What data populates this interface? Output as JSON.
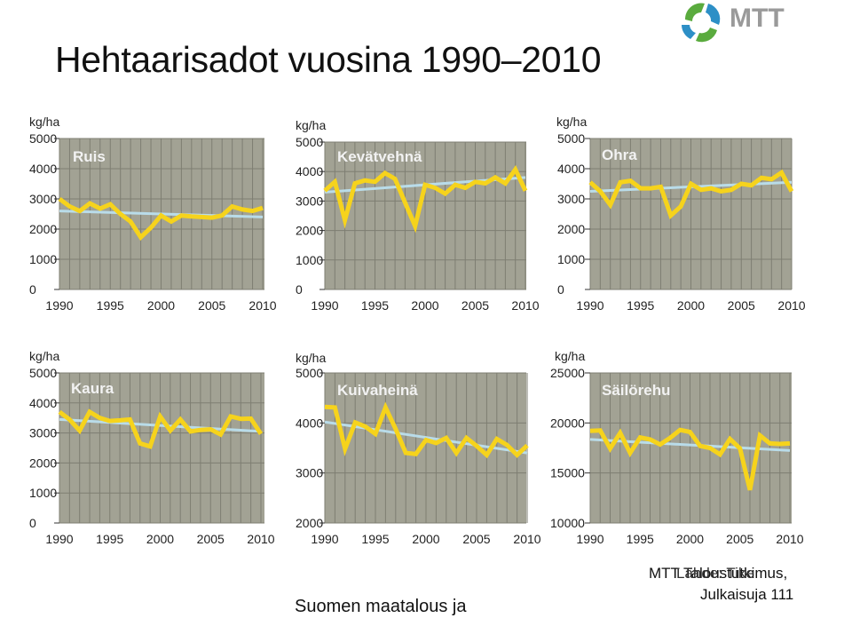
{
  "page": {
    "title": "Hehtaarisadot vuosina 1990–2010",
    "logo_text": "MTT",
    "footer_left": "Suomen maatalous ja",
    "footer_right_1": "MTT Taloustutkimus,",
    "footer_right_2": "Julkaisuja 111",
    "footer_overlap": "Lähde: Tike"
  },
  "colors": {
    "plot_bg": "#a2a294",
    "grid": "#7e7e72",
    "series": "#f6d31c",
    "trend": "#b9dce9",
    "panel_label": "#f2f2f2",
    "logo_green": "#5aab3e",
    "logo_blue": "#2d8fc6",
    "logo_text": "#9a9a9a"
  },
  "chart_data": [
    {
      "type": "line",
      "title": "Ruis",
      "unit": "kg/ha",
      "x": [
        1990,
        1991,
        1992,
        1993,
        1994,
        1995,
        1996,
        1997,
        1998,
        1999,
        2000,
        2001,
        2002,
        2003,
        2004,
        2005,
        2006,
        2007,
        2008,
        2009,
        2010
      ],
      "series": [
        {
          "values": [
            3000,
            2750,
            2600,
            2850,
            2680,
            2820,
            2500,
            2250,
            1730,
            2050,
            2450,
            2250,
            2450,
            2420,
            2400,
            2380,
            2450,
            2750,
            2650,
            2600,
            2700
          ]
        }
      ],
      "trend": [
        2600,
        2400
      ],
      "xticks": [
        "1990",
        "1995",
        "2000",
        "2005",
        "2010"
      ],
      "yticks": [
        "0",
        "1000",
        "2000",
        "3000",
        "4000",
        "5000"
      ],
      "ylim": [
        0,
        5000
      ],
      "grid": true
    },
    {
      "type": "line",
      "title": "Kevätvehnä",
      "unit": "kg/ha",
      "x": [
        1990,
        1991,
        1992,
        1993,
        1994,
        1995,
        1996,
        1997,
        1998,
        1999,
        2000,
        2001,
        2002,
        2003,
        2004,
        2005,
        2006,
        2007,
        2008,
        2009,
        2010
      ],
      "series": [
        {
          "values": [
            3350,
            3650,
            2350,
            3600,
            3700,
            3650,
            3950,
            3750,
            2950,
            2150,
            3550,
            3450,
            3250,
            3550,
            3450,
            3650,
            3600,
            3800,
            3600,
            4070,
            3350
          ]
        }
      ],
      "trend": [
        3300,
        3800
      ],
      "xticks": [
        "1990",
        "1995",
        "2000",
        "2005",
        "2010"
      ],
      "yticks": [
        "0",
        "1000",
        "2000",
        "3000",
        "4000",
        "5000"
      ],
      "ylim": [
        0,
        5000
      ],
      "grid": true
    },
    {
      "type": "line",
      "title": "Ohra",
      "unit": "kg/ha",
      "x": [
        1990,
        1991,
        1992,
        1993,
        1994,
        1995,
        1996,
        1997,
        1998,
        1999,
        2000,
        2001,
        2002,
        2003,
        2004,
        2005,
        2006,
        2007,
        2008,
        2009,
        2010
      ],
      "series": [
        {
          "values": [
            3550,
            3250,
            2800,
            3550,
            3600,
            3350,
            3350,
            3400,
            2450,
            2750,
            3500,
            3300,
            3350,
            3250,
            3300,
            3500,
            3450,
            3700,
            3650,
            3870,
            3250
          ]
        }
      ],
      "trend": [
        3250,
        3550
      ],
      "xticks": [
        "1990",
        "1995",
        "2000",
        "2005",
        "2010"
      ],
      "yticks": [
        "0",
        "1000",
        "2000",
        "3000",
        "4000",
        "5000"
      ],
      "ylim": [
        0,
        5000
      ],
      "grid": true
    },
    {
      "type": "line",
      "title": "Kaura",
      "unit": "kg/ha",
      "x": [
        1990,
        1991,
        1992,
        1993,
        1994,
        1995,
        1996,
        1997,
        1998,
        1999,
        2000,
        2001,
        2002,
        2003,
        2004,
        2005,
        2006,
        2007,
        2008,
        2009,
        2010
      ],
      "series": [
        {
          "values": [
            3700,
            3450,
            3080,
            3700,
            3500,
            3400,
            3420,
            3450,
            2650,
            2550,
            3550,
            3080,
            3450,
            3050,
            3100,
            3120,
            2950,
            3550,
            3470,
            3480,
            2970
          ]
        }
      ],
      "trend": [
        3450,
        3050
      ],
      "xticks": [
        "1990",
        "1995",
        "2000",
        "2005",
        "2010"
      ],
      "yticks": [
        "0",
        "1000",
        "2000",
        "3000",
        "4000",
        "5000"
      ],
      "ylim": [
        0,
        5000
      ],
      "grid": true
    },
    {
      "type": "line",
      "title": "Kuivaheinä",
      "unit": "kg/ha",
      "x": [
        1990,
        1991,
        1992,
        1993,
        1994,
        1995,
        1996,
        1997,
        1998,
        1999,
        2000,
        2001,
        2002,
        2003,
        2004,
        2005,
        2006,
        2007,
        2008,
        2009,
        2010
      ],
      "series": [
        {
          "values": [
            4320,
            4310,
            3480,
            4010,
            3930,
            3780,
            4310,
            3880,
            3400,
            3380,
            3660,
            3600,
            3700,
            3400,
            3700,
            3540,
            3360,
            3680,
            3560,
            3360,
            3550
          ]
        }
      ],
      "trend": [
        4020,
        3400
      ],
      "xticks": [
        "1990",
        "1995",
        "2000",
        "2005",
        "2010"
      ],
      "yticks": [
        "2000",
        "3000",
        "4000",
        "5000"
      ],
      "ylim": [
        2000,
        5000
      ],
      "grid": true
    },
    {
      "type": "line",
      "title": "Säilörehu",
      "unit": "kg/ha",
      "x": [
        1990,
        1991,
        1992,
        1993,
        1994,
        1995,
        1996,
        1997,
        1998,
        1999,
        2000,
        2001,
        2002,
        2003,
        2004,
        2005,
        2006,
        2007,
        2008,
        2009,
        2010
      ],
      "series": [
        {
          "values": [
            19200,
            19250,
            17450,
            19000,
            17000,
            18550,
            18350,
            17850,
            18500,
            19300,
            19100,
            17700,
            17500,
            16850,
            18400,
            17450,
            13300,
            18750,
            17950,
            17900,
            17950
          ]
        }
      ],
      "trend": [
        18350,
        17250
      ],
      "xticks": [
        "1990",
        "1995",
        "2000",
        "2005",
        "2010"
      ],
      "yticks": [
        "10000",
        "15000",
        "20000",
        "25000"
      ],
      "ylim": [
        10000,
        25000
      ],
      "grid": true
    }
  ]
}
